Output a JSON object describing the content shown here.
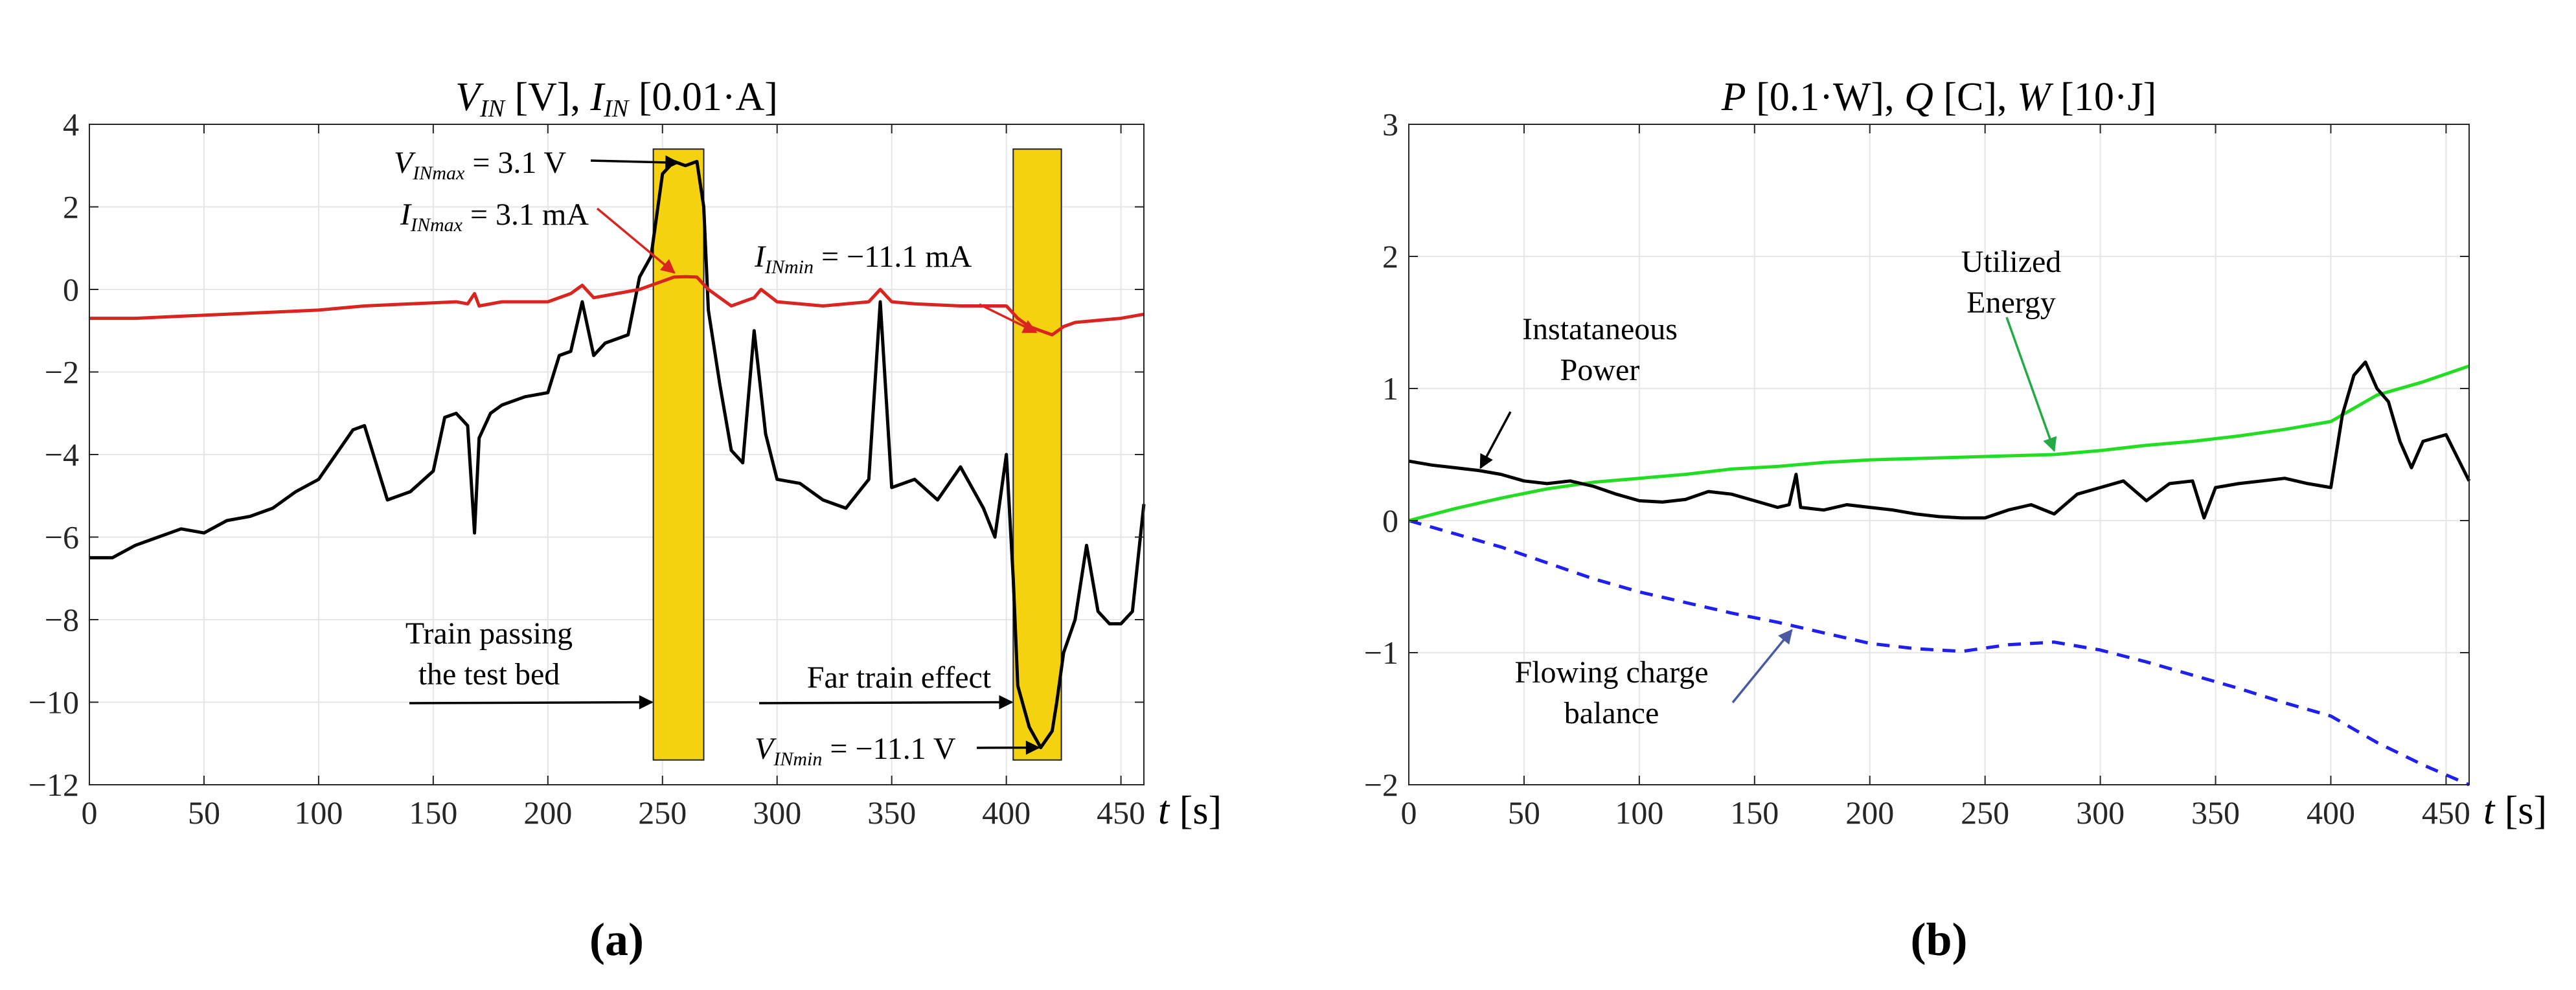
{
  "chart_data": [
    {
      "panel": "a",
      "panel_label": "(a)",
      "type": "line",
      "title": "V_IN [V], I_IN [0.01·A]",
      "title_parts": [
        "V",
        "IN",
        " [V], ",
        "I",
        "IN",
        " [0.01·A]"
      ],
      "xlabel": "t [s]",
      "xlabel_parts": [
        "t",
        " [s]"
      ],
      "ylabel": "",
      "xlim": [
        0,
        460
      ],
      "ylim": [
        -12,
        4
      ],
      "xticks": [
        0,
        50,
        100,
        150,
        200,
        250,
        300,
        350,
        400,
        450
      ],
      "yticks": [
        4,
        2,
        0,
        -2,
        -4,
        -6,
        -8,
        -10,
        -12
      ],
      "grid": true,
      "highlights": [
        {
          "x0": 246,
          "x1": 268,
          "y0": -11.4,
          "y1": 3.4,
          "color": "#f5d20f"
        },
        {
          "x0": 403,
          "x1": 424,
          "y0": -11.4,
          "y1": 3.4,
          "color": "#f5d20f"
        }
      ],
      "series": [
        {
          "name": "V_IN",
          "color": "#000000",
          "x": [
            0,
            10,
            20,
            30,
            40,
            50,
            60,
            70,
            80,
            90,
            100,
            110,
            115,
            120,
            125,
            130,
            140,
            150,
            155,
            160,
            165,
            168,
            170,
            175,
            180,
            190,
            200,
            205,
            210,
            215,
            220,
            225,
            230,
            235,
            240,
            245,
            250,
            255,
            260,
            265,
            268,
            270,
            275,
            280,
            285,
            290,
            295,
            300,
            310,
            320,
            330,
            340,
            345,
            350,
            360,
            370,
            380,
            390,
            395,
            400,
            403,
            405,
            410,
            415,
            420,
            422,
            425,
            430,
            435,
            440,
            445,
            450,
            455,
            460
          ],
          "y": [
            -6.5,
            -6.5,
            -6.2,
            -6.0,
            -5.8,
            -5.9,
            -5.6,
            -5.5,
            -5.3,
            -4.9,
            -4.6,
            -3.8,
            -3.4,
            -3.3,
            -4.2,
            -5.1,
            -4.9,
            -4.4,
            -3.1,
            -3.0,
            -3.3,
            -5.9,
            -3.6,
            -3.0,
            -2.8,
            -2.6,
            -2.5,
            -1.6,
            -1.5,
            -0.3,
            -1.6,
            -1.3,
            -1.2,
            -1.1,
            0.3,
            0.8,
            2.8,
            3.1,
            3.0,
            3.1,
            2.0,
            -0.5,
            -2.3,
            -3.9,
            -4.2,
            -1.0,
            -3.5,
            -4.6,
            -4.7,
            -5.1,
            -5.3,
            -4.6,
            -0.3,
            -4.8,
            -4.6,
            -5.1,
            -4.3,
            -5.3,
            -6.0,
            -4.0,
            -7.0,
            -9.6,
            -10.6,
            -11.1,
            -10.7,
            -10.0,
            -8.8,
            -8.0,
            -6.2,
            -7.8,
            -8.1,
            -8.1,
            -7.8,
            -5.2
          ]
        },
        {
          "name": "I_IN",
          "color": "#d9241f",
          "x": [
            0,
            20,
            40,
            60,
            80,
            100,
            120,
            140,
            160,
            165,
            168,
            170,
            180,
            200,
            210,
            215,
            220,
            240,
            250,
            255,
            260,
            265,
            270,
            280,
            290,
            293,
            300,
            320,
            340,
            345,
            350,
            360,
            380,
            400,
            405,
            410,
            415,
            420,
            425,
            430,
            440,
            450,
            460
          ],
          "y": [
            -0.7,
            -0.7,
            -0.65,
            -0.6,
            -0.55,
            -0.5,
            -0.4,
            -0.35,
            -0.3,
            -0.35,
            -0.1,
            -0.4,
            -0.3,
            -0.3,
            -0.1,
            0.1,
            -0.2,
            0.0,
            0.2,
            0.3,
            0.31,
            0.3,
            0.0,
            -0.4,
            -0.2,
            0.0,
            -0.3,
            -0.4,
            -0.3,
            0.0,
            -0.3,
            -0.35,
            -0.4,
            -0.4,
            -0.7,
            -0.9,
            -1.0,
            -1.1,
            -0.9,
            -0.8,
            -0.75,
            -0.7,
            -0.6
          ]
        }
      ],
      "annotations": [
        {
          "id": "vmax",
          "text": "V_INmax = 3.1 V",
          "parts": [
            "V",
            "INmax",
            " = 3.1 V"
          ],
          "color": "#000000",
          "target": [
            258,
            3.1
          ]
        },
        {
          "id": "imax",
          "text": "I_INmax = 3.1 mA",
          "parts": [
            "I",
            "INmax",
            " = 3.1 mA"
          ],
          "color": "#d9241f",
          "target": [
            258,
            0.31
          ]
        },
        {
          "id": "imin",
          "text": "I_INmin = −11.1 mA",
          "parts": [
            "I",
            "INmin",
            " = −11.1 mA"
          ],
          "color": "#d9241f",
          "target": [
            413,
            -1.1
          ]
        },
        {
          "id": "vmin",
          "text": "V_INmin = −11.1 V",
          "parts": [
            "V",
            "INmin",
            " = −11.1 V"
          ],
          "color": "#000000",
          "target": [
            413,
            -11.1
          ]
        },
        {
          "id": "train",
          "text": [
            "Train passing",
            "the test bed"
          ],
          "color": "#000000",
          "target": [
            246,
            -10
          ]
        },
        {
          "id": "far",
          "text": [
            "Far train effect"
          ],
          "color": "#000000",
          "target": [
            403,
            -10
          ]
        }
      ]
    },
    {
      "panel": "b",
      "panel_label": "(b)",
      "type": "line",
      "title": "P [0.1·W], Q [C], W [10·J]",
      "title_parts": [
        "P",
        " [0.1·W], ",
        "Q",
        " [C], ",
        "W",
        " [10·J]"
      ],
      "xlabel": "t [s]",
      "xlabel_parts": [
        "t",
        " [s]"
      ],
      "ylabel": "",
      "xlim": [
        0,
        460
      ],
      "ylim": [
        -2,
        3
      ],
      "xticks": [
        0,
        50,
        100,
        150,
        200,
        250,
        300,
        350,
        400,
        450
      ],
      "yticks": [
        3,
        2,
        1,
        0,
        -1,
        -2
      ],
      "grid": true,
      "series": [
        {
          "name": "Instataneous Power",
          "color": "#000000",
          "dash": "",
          "x": [
            0,
            10,
            20,
            30,
            40,
            50,
            60,
            70,
            80,
            90,
            100,
            110,
            120,
            130,
            140,
            150,
            160,
            165,
            168,
            170,
            180,
            190,
            200,
            210,
            220,
            230,
            240,
            250,
            260,
            270,
            280,
            290,
            300,
            310,
            320,
            330,
            340,
            345,
            350,
            360,
            370,
            380,
            390,
            400,
            405,
            410,
            415,
            420,
            425,
            430,
            435,
            440,
            450,
            460
          ],
          "y": [
            0.45,
            0.42,
            0.4,
            0.38,
            0.35,
            0.3,
            0.28,
            0.3,
            0.26,
            0.2,
            0.15,
            0.14,
            0.16,
            0.22,
            0.2,
            0.15,
            0.1,
            0.12,
            0.35,
            0.1,
            0.08,
            0.12,
            0.1,
            0.08,
            0.05,
            0.03,
            0.02,
            0.02,
            0.08,
            0.12,
            0.05,
            0.2,
            0.25,
            0.3,
            0.15,
            0.28,
            0.3,
            0.02,
            0.25,
            0.28,
            0.3,
            0.32,
            0.28,
            0.25,
            0.8,
            1.1,
            1.2,
            1.0,
            0.9,
            0.6,
            0.4,
            0.6,
            0.65,
            0.3
          ]
        },
        {
          "name": "Utilized Energy",
          "color": "#22dd22",
          "dash": "",
          "x": [
            0,
            20,
            40,
            60,
            80,
            100,
            120,
            140,
            160,
            180,
            200,
            220,
            240,
            260,
            280,
            300,
            320,
            340,
            360,
            380,
            400,
            420,
            440,
            460
          ],
          "y": [
            0.0,
            0.09,
            0.17,
            0.24,
            0.29,
            0.32,
            0.35,
            0.39,
            0.41,
            0.44,
            0.46,
            0.47,
            0.48,
            0.49,
            0.5,
            0.53,
            0.57,
            0.6,
            0.64,
            0.69,
            0.75,
            0.95,
            1.05,
            1.17
          ]
        },
        {
          "name": "Flowing charge balance",
          "color": "#1f1ff0",
          "dash": "20 14",
          "x": [
            0,
            20,
            40,
            60,
            80,
            100,
            120,
            140,
            160,
            180,
            200,
            220,
            240,
            260,
            280,
            300,
            320,
            340,
            360,
            380,
            400,
            420,
            440,
            460
          ],
          "y": [
            0.0,
            -0.1,
            -0.2,
            -0.32,
            -0.44,
            -0.54,
            -0.62,
            -0.7,
            -0.77,
            -0.85,
            -0.93,
            -0.97,
            -0.99,
            -0.94,
            -0.92,
            -0.98,
            -1.07,
            -1.17,
            -1.27,
            -1.38,
            -1.48,
            -1.68,
            -1.85,
            -2.0
          ]
        }
      ],
      "annotations": [
        {
          "id": "power",
          "text": [
            "Instataneous",
            "Power"
          ],
          "color": "#000000",
          "target": [
            30,
            0.38
          ]
        },
        {
          "id": "energy",
          "text": [
            "Utilized",
            "Energy"
          ],
          "color": "#22aa44",
          "target": [
            280,
            0.5
          ]
        },
        {
          "id": "charge",
          "text": [
            "Flowing charge",
            "balance"
          ],
          "color": "#4a5aa0",
          "target": [
            165,
            -0.8
          ]
        }
      ]
    }
  ]
}
